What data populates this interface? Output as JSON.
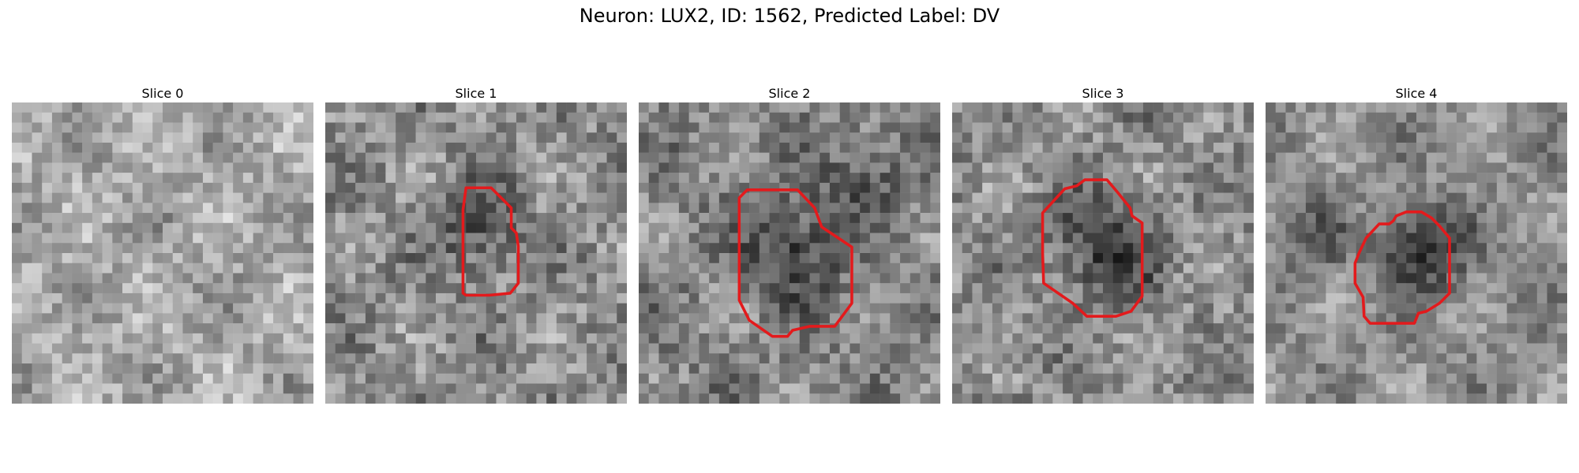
{
  "title": "Neuron: LUX2, ID: 1562, Predicted Label: DV",
  "contour_color": "#e31a1c",
  "panels": [
    {
      "title": "Slice 0",
      "has_contour": false
    },
    {
      "title": "Slice 1",
      "has_contour": true
    },
    {
      "title": "Slice 2",
      "has_contour": true
    },
    {
      "title": "Slice 3",
      "has_contour": true
    },
    {
      "title": "Slice 4",
      "has_contour": true
    }
  ]
}
